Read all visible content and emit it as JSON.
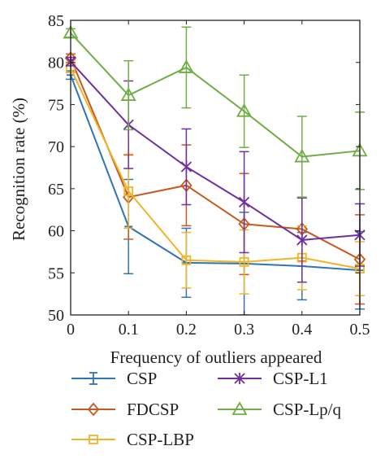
{
  "chart_data": {
    "type": "line",
    "xlabel": "Frequency of outliers appeared",
    "ylabel": "Recognition rate (%)",
    "x": [
      0,
      0.1,
      0.2,
      0.3,
      0.4,
      0.5
    ],
    "xticks": [
      "0",
      "0.1",
      "0.2",
      "0.3",
      "0.4",
      "0.5"
    ],
    "yticks": [
      "50",
      "55",
      "60",
      "65",
      "70",
      "75",
      "80",
      "85"
    ],
    "xlim": [
      0,
      0.5
    ],
    "ylim": [
      50,
      85
    ],
    "grid": false,
    "legend_position": "bottom",
    "series": [
      {
        "name": "CSP",
        "color": "#2e75b6",
        "marker": "bar",
        "values": [
          78.5,
          60.5,
          56.2,
          56.1,
          55.8,
          55.3
        ],
        "errors": [
          0.5,
          5.6,
          4.1,
          6.1,
          4.0,
          4.6
        ]
      },
      {
        "name": "FDCSP",
        "color": "#c65a1e",
        "marker": "diamond",
        "values": [
          80.5,
          64.0,
          65.4,
          60.8,
          60.2,
          56.6
        ],
        "errors": [
          0.5,
          5.0,
          4.8,
          6.0,
          3.8,
          5.3
        ]
      },
      {
        "name": "CSP-LBP",
        "color": "#f0b429",
        "marker": "square",
        "values": [
          79.3,
          64.7,
          56.5,
          56.3,
          56.8,
          55.5
        ],
        "errors": [
          0.5,
          4.4,
          3.3,
          3.8,
          3.8,
          3.2
        ]
      },
      {
        "name": "CSP-L1",
        "color": "#7030a0",
        "marker": "star",
        "values": [
          80.1,
          72.6,
          67.6,
          63.4,
          58.9,
          59.5
        ],
        "errors": [
          0.5,
          5.2,
          4.5,
          6.0,
          5.0,
          3.7
        ]
      },
      {
        "name": "CSP-Lp/q",
        "color": "#70ad47",
        "marker": "triangle",
        "values": [
          83.5,
          76.1,
          79.4,
          74.2,
          68.8,
          69.5
        ],
        "errors": [
          0.5,
          4.1,
          4.8,
          4.3,
          4.8,
          4.6
        ]
      }
    ]
  }
}
